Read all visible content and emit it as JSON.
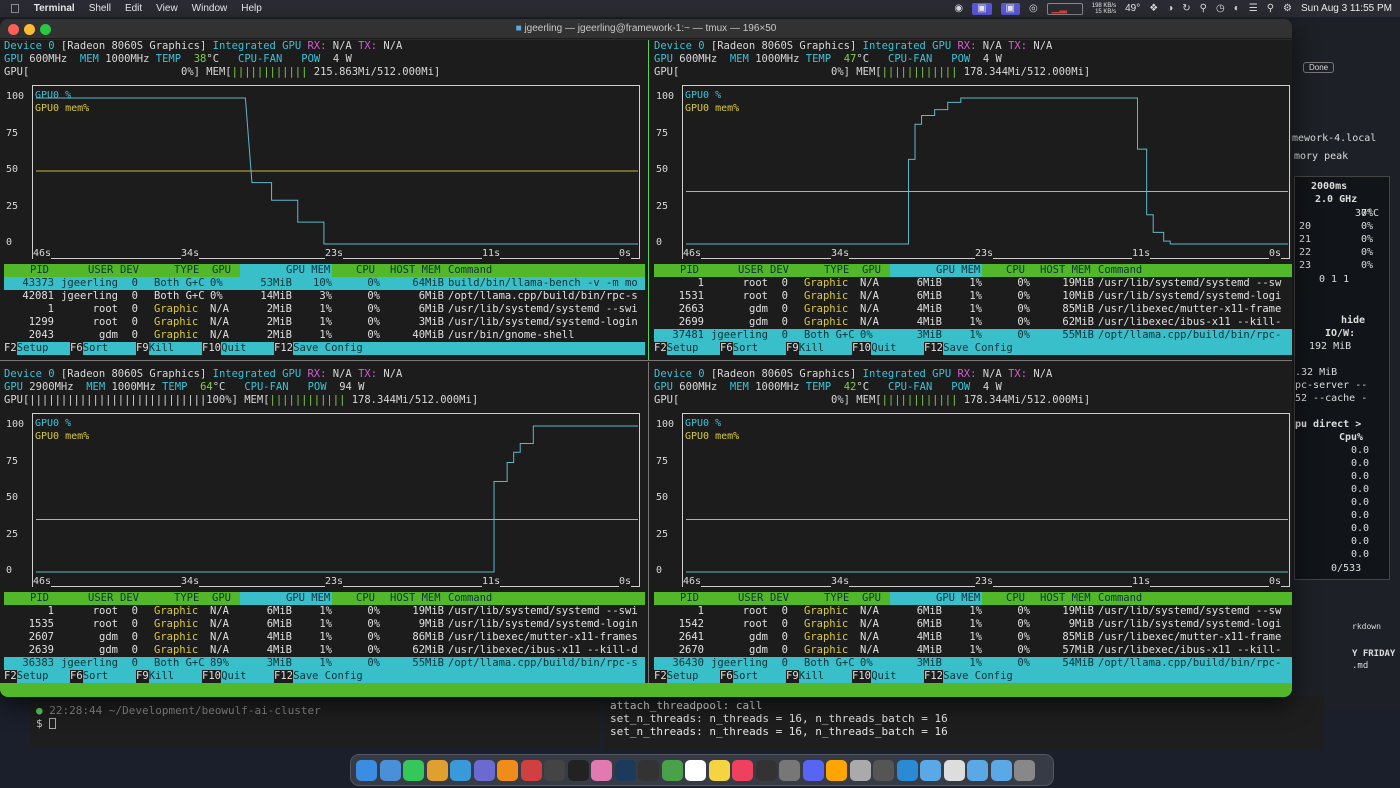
{
  "menubar": {
    "apple": "",
    "app": "Terminal",
    "items": [
      "Shell",
      "Edit",
      "View",
      "Window",
      "Help"
    ],
    "net_up": "198 KB/s",
    "net_down": "15 KB/s",
    "temp": "49°",
    "datetime": "Sun Aug 3  11:55 PM"
  },
  "window": {
    "title": "jgeerling — jgeerling@framework-1:~ — tmux — 196×50"
  },
  "panes": [
    {
      "device": "Device 0",
      "model": "[Radeon 8060S Graphics]",
      "integrated": "Integrated GPU",
      "rx": "RX:",
      "rx_val": "N/A",
      "tx": "TX:",
      "tx_val": "N/A",
      "gpu_clk_lbl": "GPU",
      "gpu_clk": "600MHz",
      "mem_clk_lbl": "MEM",
      "mem_clk": "1000MHz",
      "temp_lbl": "TEMP",
      "temp": "38",
      "temp_unit": "°C",
      "fan_lbl": "CPU-FAN",
      "pow_lbl": "POW",
      "pow": "4 W",
      "gpu_bar": "GPU[                        0%]",
      "mem_bar_lbl": "MEM[",
      "mem_bar": "||||||||||||",
      "mem_val": "215.863Mi/512.000Mi]",
      "gpu_series": [
        [
          46,
          100
        ],
        [
          30,
          100
        ],
        [
          29.5,
          42
        ],
        [
          28,
          42
        ],
        [
          28,
          30
        ],
        [
          26,
          30
        ],
        [
          26,
          15
        ],
        [
          24,
          15
        ],
        [
          24,
          0
        ],
        [
          0,
          0
        ]
      ],
      "mem_level": 50,
      "procs": [
        {
          "pid": "43373",
          "user": "jgeerling",
          "dev": "0",
          "type": "Both G+C",
          "gpu": "0%",
          "gpumem": "53MiB",
          "pct": "10%",
          "cpu": "0%",
          "host": "64MiB",
          "cmd": "build/bin/llama-bench -v -m mo",
          "sel": true
        },
        {
          "pid": "42081",
          "user": "jgeerling",
          "dev": "0",
          "type": "Both G+C",
          "gpu": "0%",
          "gpumem": "14MiB",
          "pct": "3%",
          "cpu": "0%",
          "host": "6MiB",
          "cmd": "/opt/llama.cpp/build/bin/rpc-s"
        },
        {
          "pid": "1",
          "user": "root",
          "dev": "0",
          "type": "Graphic",
          "gpu": "N/A",
          "gpumem": "2MiB",
          "pct": "1%",
          "cpu": "0%",
          "host": "6MiB",
          "cmd": "/usr/lib/systemd/systemd --swi"
        },
        {
          "pid": "1299",
          "user": "root",
          "dev": "0",
          "type": "Graphic",
          "gpu": "N/A",
          "gpumem": "2MiB",
          "pct": "1%",
          "cpu": "0%",
          "host": "3MiB",
          "cmd": "/usr/lib/systemd/systemd-login"
        },
        {
          "pid": "2043",
          "user": "gdm",
          "dev": "0",
          "type": "Graphic",
          "gpu": "N/A",
          "gpumem": "2MiB",
          "pct": "1%",
          "cpu": "0%",
          "host": "40MiB",
          "cmd": "/usr/bin/gnome-shell"
        }
      ]
    },
    {
      "device": "Device 0",
      "model": "[Radeon 8060S Graphics]",
      "integrated": "Integrated GPU",
      "rx": "RX:",
      "rx_val": "N/A",
      "tx": "TX:",
      "tx_val": "N/A",
      "gpu_clk_lbl": "GPU",
      "gpu_clk": "600MHz",
      "mem_clk_lbl": "MEM",
      "mem_clk": "1000MHz",
      "temp_lbl": "TEMP",
      "temp": "47",
      "temp_unit": "°C",
      "fan_lbl": "CPU-FAN",
      "pow_lbl": "POW",
      "pow": "4 W",
      "gpu_bar": "GPU[                        0%]",
      "mem_bar_lbl": "MEM[",
      "mem_bar": "||||||||||||",
      "mem_val": "178.344Mi/512.000Mi]",
      "gpu_series": [
        [
          46,
          0
        ],
        [
          29,
          0
        ],
        [
          29,
          58
        ],
        [
          28.5,
          58
        ],
        [
          28.5,
          82
        ],
        [
          28,
          82
        ],
        [
          28,
          88
        ],
        [
          27,
          88
        ],
        [
          27,
          92
        ],
        [
          26,
          92
        ],
        [
          26,
          97
        ],
        [
          25,
          97
        ],
        [
          25,
          100
        ],
        [
          11.5,
          100
        ],
        [
          11.5,
          65
        ],
        [
          10.8,
          65
        ],
        [
          10.8,
          20
        ],
        [
          10.3,
          20
        ],
        [
          10.3,
          8
        ],
        [
          9.5,
          8
        ],
        [
          9.5,
          2
        ],
        [
          9,
          2
        ],
        [
          9,
          0
        ],
        [
          0,
          0
        ]
      ],
      "mem_level": 36,
      "procs": [
        {
          "pid": "1",
          "user": "root",
          "dev": "0",
          "type": "Graphic",
          "gpu": "N/A",
          "gpumem": "6MiB",
          "pct": "1%",
          "cpu": "0%",
          "host": "19MiB",
          "cmd": "/usr/lib/systemd/systemd --sw"
        },
        {
          "pid": "1531",
          "user": "root",
          "dev": "0",
          "type": "Graphic",
          "gpu": "N/A",
          "gpumem": "6MiB",
          "pct": "1%",
          "cpu": "0%",
          "host": "10MiB",
          "cmd": "/usr/lib/systemd/systemd-logi"
        },
        {
          "pid": "2663",
          "user": "gdm",
          "dev": "0",
          "type": "Graphic",
          "gpu": "N/A",
          "gpumem": "4MiB",
          "pct": "1%",
          "cpu": "0%",
          "host": "85MiB",
          "cmd": "/usr/libexec/mutter-x11-frame"
        },
        {
          "pid": "2699",
          "user": "gdm",
          "dev": "0",
          "type": "Graphic",
          "gpu": "N/A",
          "gpumem": "4MiB",
          "pct": "1%",
          "cpu": "0%",
          "host": "62MiB",
          "cmd": "/usr/libexec/ibus-x11 --kill-"
        },
        {
          "pid": "37481",
          "user": "jgeerling",
          "dev": "0",
          "type": "Both G+C",
          "gpu": "0%",
          "gpumem": "3MiB",
          "pct": "1%",
          "cpu": "0%",
          "host": "55MiB",
          "cmd": "/opt/llama.cpp/build/bin/rpc-",
          "sel": true
        }
      ]
    },
    {
      "device": "Device 0",
      "model": "[Radeon 8060S Graphics]",
      "integrated": "Integrated GPU",
      "rx": "RX:",
      "rx_val": "N/A",
      "tx": "TX:",
      "tx_val": "N/A",
      "gpu_clk_lbl": "GPU",
      "gpu_clk": "2900MHz",
      "mem_clk_lbl": "MEM",
      "mem_clk": "1000MHz",
      "temp_lbl": "TEMP",
      "temp": "64",
      "temp_unit": "°C",
      "fan_lbl": "CPU-FAN",
      "pow_lbl": "POW",
      "pow": "94 W",
      "gpu_bar": "GPU[||||||||||||||||||||||||||||100%]",
      "mem_bar_lbl": "MEM[",
      "mem_bar": "||||||||||||",
      "mem_val": "178.344Mi/512.000Mi]",
      "gpu_series": [
        [
          46,
          0
        ],
        [
          11,
          0
        ],
        [
          11,
          62
        ],
        [
          10,
          62
        ],
        [
          10,
          75
        ],
        [
          9.5,
          75
        ],
        [
          9.5,
          82
        ],
        [
          9,
          82
        ],
        [
          9,
          88
        ],
        [
          8,
          88
        ],
        [
          8,
          100
        ],
        [
          0,
          100
        ]
      ],
      "mem_level": 36,
      "procs": [
        {
          "pid": "1",
          "user": "root",
          "dev": "0",
          "type": "Graphic",
          "gpu": "N/A",
          "gpumem": "6MiB",
          "pct": "1%",
          "cpu": "0%",
          "host": "19MiB",
          "cmd": "/usr/lib/systemd/systemd --swi"
        },
        {
          "pid": "1535",
          "user": "root",
          "dev": "0",
          "type": "Graphic",
          "gpu": "N/A",
          "gpumem": "6MiB",
          "pct": "1%",
          "cpu": "0%",
          "host": "9MiB",
          "cmd": "/usr/lib/systemd/systemd-login"
        },
        {
          "pid": "2607",
          "user": "gdm",
          "dev": "0",
          "type": "Graphic",
          "gpu": "N/A",
          "gpumem": "4MiB",
          "pct": "1%",
          "cpu": "0%",
          "host": "86MiB",
          "cmd": "/usr/libexec/mutter-x11-frames"
        },
        {
          "pid": "2639",
          "user": "gdm",
          "dev": "0",
          "type": "Graphic",
          "gpu": "N/A",
          "gpumem": "4MiB",
          "pct": "1%",
          "cpu": "0%",
          "host": "62MiB",
          "cmd": "/usr/libexec/ibus-x11 --kill-d"
        },
        {
          "pid": "36383",
          "user": "jgeerling",
          "dev": "0",
          "type": "Both G+C",
          "gpu": "89%",
          "gpumem": "3MiB",
          "pct": "1%",
          "cpu": "0%",
          "host": "55MiB",
          "cmd": "/opt/llama.cpp/build/bin/rpc-s",
          "sel": true
        }
      ]
    },
    {
      "device": "Device 0",
      "model": "[Radeon 8060S Graphics]",
      "integrated": "Integrated GPU",
      "rx": "RX:",
      "rx_val": "N/A",
      "tx": "TX:",
      "tx_val": "N/A",
      "gpu_clk_lbl": "GPU",
      "gpu_clk": "600MHz",
      "mem_clk_lbl": "MEM",
      "mem_clk": "1000MHz",
      "temp_lbl": "TEMP",
      "temp": "42",
      "temp_unit": "°C",
      "fan_lbl": "CPU-FAN",
      "pow_lbl": "POW",
      "pow": "4 W",
      "gpu_bar": "GPU[                        0%]",
      "mem_bar_lbl": "MEM[",
      "mem_bar": "||||||||||||",
      "mem_val": "178.344Mi/512.000Mi]",
      "gpu_series": [
        [
          46,
          0
        ],
        [
          0,
          0
        ]
      ],
      "mem_level": 36,
      "procs": [
        {
          "pid": "1",
          "user": "root",
          "dev": "0",
          "type": "Graphic",
          "gpu": "N/A",
          "gpumem": "6MiB",
          "pct": "1%",
          "cpu": "0%",
          "host": "19MiB",
          "cmd": "/usr/lib/systemd/systemd --sw"
        },
        {
          "pid": "1542",
          "user": "root",
          "dev": "0",
          "type": "Graphic",
          "gpu": "N/A",
          "gpumem": "6MiB",
          "pct": "1%",
          "cpu": "0%",
          "host": "9MiB",
          "cmd": "/usr/lib/systemd/systemd-logi"
        },
        {
          "pid": "2641",
          "user": "gdm",
          "dev": "0",
          "type": "Graphic",
          "gpu": "N/A",
          "gpumem": "4MiB",
          "pct": "1%",
          "cpu": "0%",
          "host": "85MiB",
          "cmd": "/usr/libexec/mutter-x11-frame"
        },
        {
          "pid": "2670",
          "user": "gdm",
          "dev": "0",
          "type": "Graphic",
          "gpu": "N/A",
          "gpumem": "4MiB",
          "pct": "1%",
          "cpu": "0%",
          "host": "57MiB",
          "cmd": "/usr/libexec/ibus-x11 --kill-"
        },
        {
          "pid": "36430",
          "user": "jgeerling",
          "dev": "0",
          "type": "Both G+C",
          "gpu": "0%",
          "gpumem": "3MiB",
          "pct": "1%",
          "cpu": "0%",
          "host": "54MiB",
          "cmd": "/opt/llama.cpp/build/bin/rpc-",
          "sel": true
        }
      ]
    }
  ],
  "graph_labels": {
    "legend_gpu": "GPU0 %",
    "legend_mem": "GPU0 mem%",
    "yticks": [
      "100",
      "75",
      "50",
      "25",
      "0"
    ],
    "xticks": [
      "46s",
      "34s",
      "23s",
      "11s",
      "0s"
    ]
  },
  "table_header": {
    "pid": "PID",
    "user": "USER",
    "dev": "DEV",
    "type": "TYPE",
    "gpu": "GPU",
    "gpumem": "GPU MEM",
    "cpu": "CPU",
    "host": "HOST MEM",
    "cmd": "Command"
  },
  "footer_keys": [
    {
      "k": "F2",
      "l": "Setup"
    },
    {
      "k": "F6",
      "l": "Sort"
    },
    {
      "k": "F9",
      "l": "Kill"
    },
    {
      "k": "F10",
      "l": "Quit"
    },
    {
      "k": "F12",
      "l": "Save Config"
    }
  ],
  "bg_terminal_left": {
    "prompt": "22:28:44 ~/Development/beowulf-ai-cluster",
    "cursor": "$"
  },
  "bg_terminal_right": {
    "lines": [
      "attach_threadpool: call",
      "set_n_threads: n_threads = 16, n_threads_batch = 16",
      "set_n_threads: n_threads = 16, n_threads_batch = 16"
    ]
  },
  "bg_right": {
    "done": "Done",
    "host": "mework-4.local",
    "mem_peak": "mory peak",
    "interval": "2000ms",
    "freq": "2.0 GHz",
    "temp": "37°C",
    "cores": [
      "20",
      "21",
      "22",
      "23"
    ],
    "core_vals": [
      "0%",
      "0%",
      "0%",
      "0%",
      "0%",
      "0%"
    ],
    "load": "0 1 1",
    "hide": "hide",
    "iow": "IO/W:",
    "iow_val": "192 MiB",
    "mib": ".32 MiB",
    "rpc": "pc-server --",
    "cache": "52 --cache -",
    "pu_direct": "pu direct >",
    "cpu_pct": "Cpu%",
    "cpu_vals": [
      "0.0",
      "0.0",
      "0.0",
      "0.0",
      "0.0",
      "0.0",
      "0.0",
      "0.0",
      "0.0",
      "0.0",
      "0.0",
      "0.0"
    ],
    "count": "0/533",
    "friday": "Y FRIDAY",
    "md": ".md",
    "rkdown": "rkdown"
  }
}
